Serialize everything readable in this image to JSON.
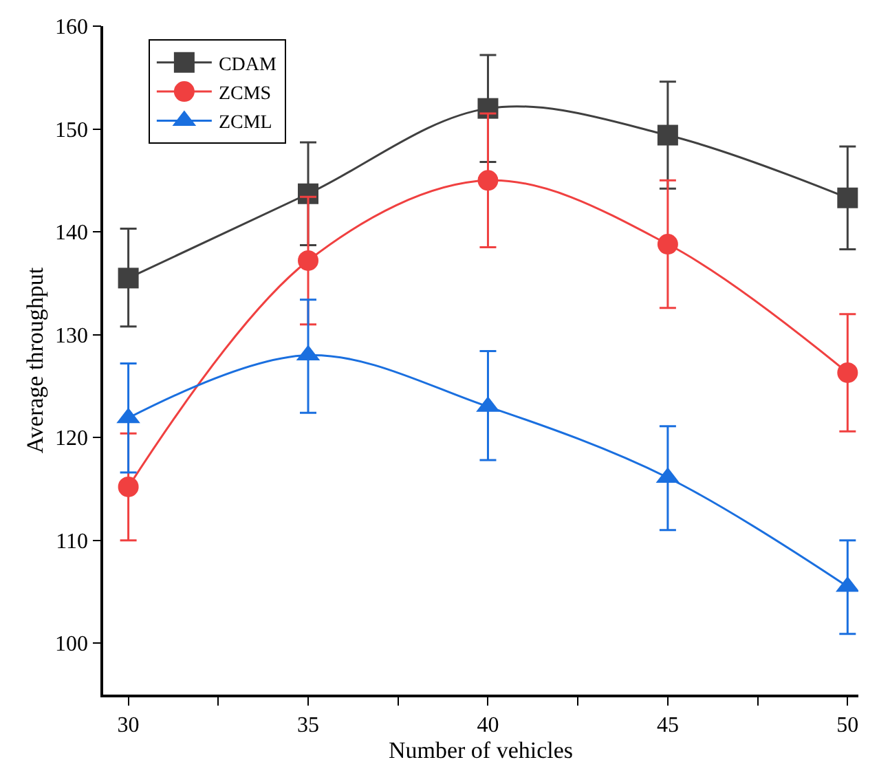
{
  "chart_data": {
    "type": "line",
    "xlabel": "Number of vehicles",
    "ylabel": "Average throughput",
    "x": [
      30,
      35,
      40,
      45,
      50
    ],
    "series": [
      {
        "name": "CDAM",
        "color": "#404040",
        "marker": "square",
        "values": [
          135.5,
          143.7,
          152.0,
          149.4,
          143.3
        ],
        "errors": [
          [
            130.8,
            140.3
          ],
          [
            138.7,
            148.7
          ],
          [
            146.8,
            157.2
          ],
          [
            144.2,
            154.6
          ],
          [
            138.3,
            148.3
          ]
        ]
      },
      {
        "name": "ZCMS",
        "color": "#f04040",
        "marker": "circle",
        "values": [
          115.2,
          137.2,
          145.0,
          138.8,
          126.3
        ],
        "errors": [
          [
            110.0,
            120.4
          ],
          [
            131.0,
            143.4
          ],
          [
            138.5,
            151.5
          ],
          [
            132.6,
            145.0
          ],
          [
            120.6,
            132.0
          ]
        ]
      },
      {
        "name": "ZCML",
        "color": "#1a6fdf",
        "marker": "triangle",
        "values": [
          121.9,
          128.0,
          123.0,
          116.1,
          105.5
        ],
        "errors": [
          [
            116.6,
            127.2
          ],
          [
            122.4,
            133.4
          ],
          [
            117.8,
            128.4
          ],
          [
            111.0,
            121.1
          ],
          [
            100.9,
            110.0
          ]
        ]
      }
    ],
    "xlim": [
      29.3,
      50.3
    ],
    "xticks": [
      30,
      {
        "value": 32.5,
        "label": null
      },
      35,
      {
        "value": 37.5,
        "label": null
      },
      40,
      {
        "value": 42.5,
        "label": null
      },
      45,
      {
        "value": 47.5,
        "label": null
      },
      50
    ],
    "ylim": [
      95,
      160
    ],
    "yticks": [
      100,
      110,
      120,
      130,
      140,
      150,
      160
    ],
    "legend": "top left",
    "line_style": "solid"
  }
}
